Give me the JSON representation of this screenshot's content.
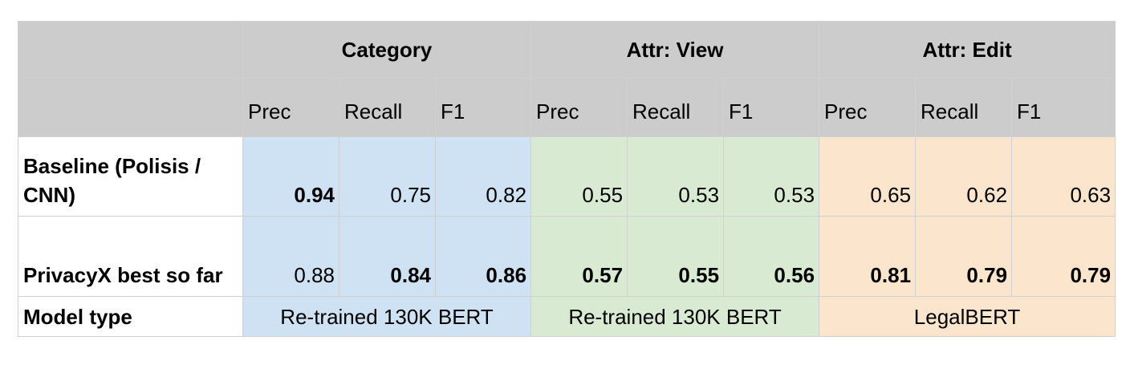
{
  "groups": {
    "category": "Category",
    "attr_view": "Attr: View",
    "attr_edit": "Attr: Edit"
  },
  "metrics": {
    "category": [
      "Prec",
      "Recall",
      "F1"
    ],
    "attr_view": [
      "Prec",
      "Recall",
      "F1"
    ],
    "attr_edit": [
      "Prec",
      "Recall",
      "F1"
    ]
  },
  "rows": [
    {
      "label": "Baseline (Polisis / CNN)",
      "values": [
        "0.94",
        "0.75",
        "0.82",
        "0.55",
        "0.53",
        "0.53",
        "0.65",
        "0.62",
        "0.63"
      ],
      "bold": [
        true,
        false,
        false,
        false,
        false,
        false,
        false,
        false,
        false
      ]
    },
    {
      "label": "PrivacyX best so far",
      "values": [
        "0.88",
        "0.84",
        "0.86",
        "0.57",
        "0.55",
        "0.56",
        "0.81",
        "0.79",
        "0.79"
      ],
      "bold": [
        false,
        true,
        true,
        true,
        true,
        true,
        true,
        true,
        true
      ]
    }
  ],
  "model_row": {
    "label": "Model type",
    "category": "Re-trained 130K BERT",
    "attr_view": "Re-trained 130K BERT",
    "attr_edit": "LegalBERT"
  },
  "colors": {
    "header_gray": "#cccccc",
    "category_blue": "#cfe2f3",
    "attr_view_green": "#d9ead3",
    "attr_edit_orange": "#fce5cd"
  }
}
